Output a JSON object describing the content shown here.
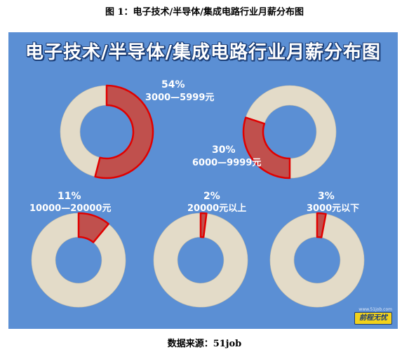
{
  "document": {
    "caption": "图 1：电子技术/半导体/集成电路行业月薪分布图",
    "source": "数据来源：51job"
  },
  "panel": {
    "title": "电子技术/半导体/集成电路行业月薪分布图",
    "background_color": "#5b8fd4"
  },
  "logo": {
    "url": "www.51job.com",
    "brand": "前程无忧"
  },
  "colors": {
    "highlight": "#c0504d",
    "highlight_border": "#e00000",
    "ring": "#e3dbc8",
    "ring_gap": "#c9c0a8"
  },
  "chart_data": [
    {
      "type": "pie",
      "style": "donut",
      "percent_label": "54%",
      "range_label": "3000—5999元",
      "value": 54
    },
    {
      "type": "pie",
      "style": "donut",
      "percent_label": "30%",
      "range_label": "6000—9999元",
      "value": 30
    },
    {
      "type": "pie",
      "style": "donut",
      "percent_label": "11%",
      "range_label": "10000—20000元",
      "value": 11
    },
    {
      "type": "pie",
      "style": "donut",
      "percent_label": "2%",
      "range_label": "20000元以上",
      "value": 2
    },
    {
      "type": "pie",
      "style": "donut",
      "percent_label": "3%",
      "range_label": "3000元以下",
      "value": 3
    }
  ]
}
